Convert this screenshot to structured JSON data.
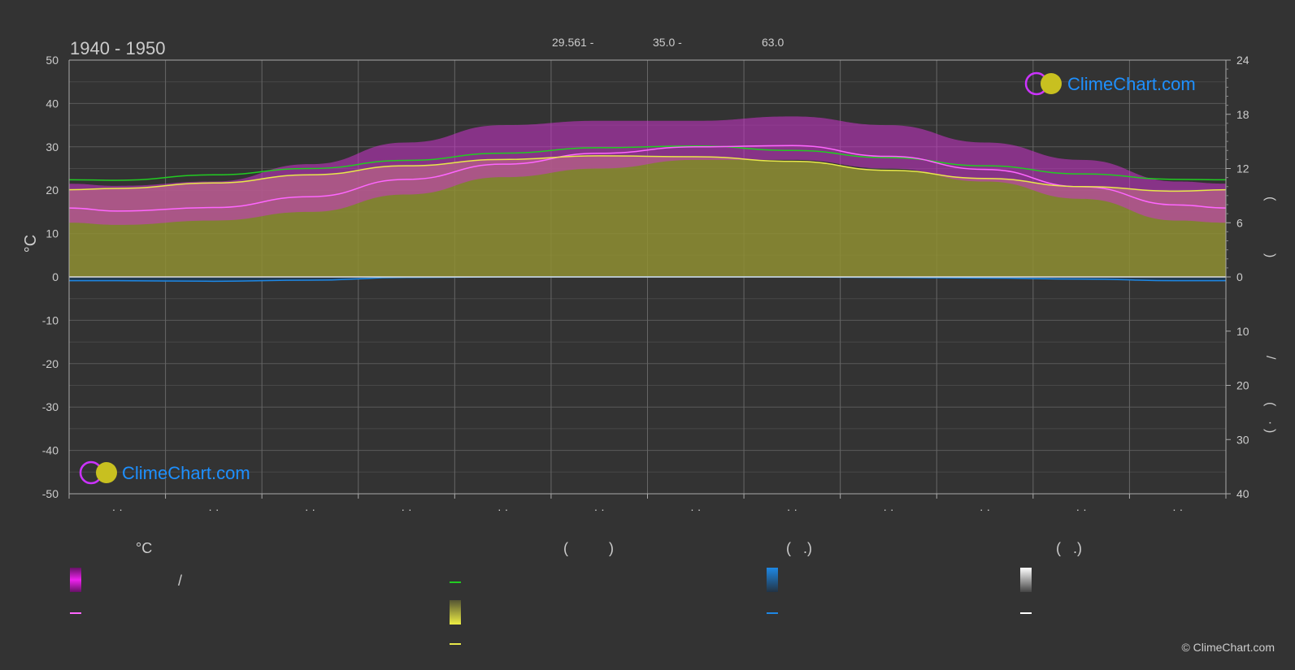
{
  "chart_data": {
    "type": "area",
    "title": "1940 - 1950",
    "header_values": [
      "29.561 -",
      "35.0 -",
      "63.0"
    ],
    "ylabel": "°C",
    "ylim": [
      -50,
      50
    ],
    "y_ticks": [
      50,
      40,
      30,
      20,
      10,
      0,
      -10,
      -20,
      -30,
      -40,
      -50
    ],
    "y2_upper_ticks": [
      24,
      18,
      12,
      6,
      0
    ],
    "y2_upper_lim": [
      0,
      24
    ],
    "y2_lower_ticks": [
      10,
      20,
      30,
      40
    ],
    "y2_lower_lim": [
      0,
      40
    ],
    "y2_labels_upper": [
      "(",
      ")"
    ],
    "y2_labels_lower": [
      "(",
      "·",
      ")",
      "/"
    ],
    "x_tick_labels": [
      "· ·",
      "· ·",
      "· ·",
      "· ·",
      "· ·",
      "· ·",
      "· ·",
      "· ·",
      "· ·",
      "· ·",
      "· ·",
      "· ·"
    ],
    "x_months": [
      0.5,
      1.5,
      2.5,
      3.5,
      4.5,
      5.5,
      6.5,
      7.5,
      8.5,
      9.5,
      10.5,
      11.5
    ],
    "series": [
      {
        "key": "daylight",
        "color": "#22cc22",
        "axis": "hours",
        "values": [
          10.7,
          11.3,
          12.0,
          12.9,
          13.7,
          14.3,
          14.5,
          14.0,
          13.2,
          12.3,
          11.4,
          10.8
        ]
      },
      {
        "key": "max_temp_avg",
        "color": "#ff66ff",
        "axis": "temp",
        "values": [
          15.2,
          16.0,
          18.5,
          22.5,
          26.0,
          28.5,
          30.0,
          30.3,
          27.8,
          24.8,
          20.8,
          16.6
        ]
      },
      {
        "key": "sunshine",
        "color": "#e8e84a",
        "axis": "hours",
        "values": [
          9.8,
          10.4,
          11.3,
          12.3,
          13.0,
          13.4,
          13.3,
          12.8,
          11.8,
          10.9,
          10.0,
          9.5
        ]
      },
      {
        "key": "precip",
        "color": "#1e88e5",
        "axis": "precip",
        "values": [
          0.7,
          0.8,
          0.6,
          0.1,
          0.0,
          0.0,
          0.0,
          0.0,
          0.1,
          0.2,
          0.4,
          0.7
        ]
      }
    ],
    "temp_band_max": [
      21,
      22,
      26,
      31,
      35,
      36,
      36,
      37,
      35,
      31,
      27,
      22
    ],
    "temp_band_min": [
      12,
      13,
      15,
      19,
      23,
      25,
      27,
      27,
      25,
      22,
      18,
      13
    ]
  },
  "legend": {
    "headers": [
      "°C",
      "(          )",
      "(   .)",
      "(   .)"
    ],
    "slash": "/"
  },
  "watermark": "ClimeChart.com",
  "copyright": "© ClimeChart.com",
  "colors": {
    "background": "#333333",
    "grid": "#555555",
    "text": "#cccccc",
    "magenta": "#cc33cc",
    "olive": "#8f8f33",
    "blue": "#1e88e5",
    "brand_blue": "#1e90ff"
  }
}
